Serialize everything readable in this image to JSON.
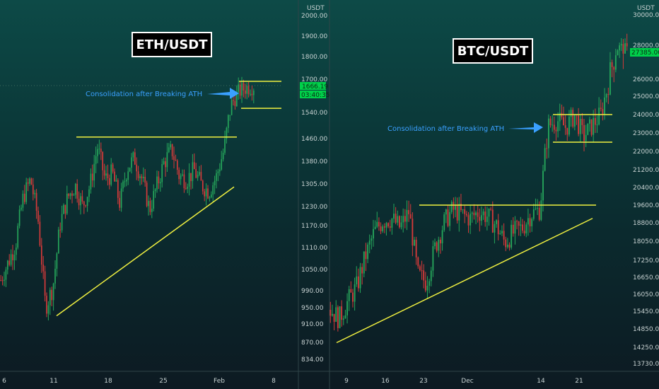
{
  "charts": [
    {
      "title": "ETH/USDT",
      "currency": "USDT",
      "y_ticks": [
        "2000.00",
        "1900.00",
        "1800.00",
        "1700.00",
        "1540.00",
        "1460.00",
        "1380.00",
        "1305.00",
        "1230.00",
        "1170.00",
        "1110.00",
        "1050.00",
        "990.00",
        "950.00",
        "910.00",
        "870.00",
        "834.00"
      ],
      "x_ticks": [
        "6",
        "11",
        "18",
        "25",
        "Feb",
        "8"
      ],
      "price_label": "1666.19",
      "timer_label": "03:40:35",
      "annotation": "Consolidation after Breaking ATH"
    },
    {
      "title": "BTC/USDT",
      "currency": "USDT",
      "y_ticks": [
        "30000.00",
        "28000.00",
        "27000.00",
        "26000.00",
        "25000.00",
        "24000.00",
        "23000.00",
        "22000.00",
        "21200.00",
        "20400.00",
        "19600.00",
        "18800.00",
        "18050.00",
        "17250.00",
        "16650.00",
        "16050.00",
        "15450.00",
        "14850.00",
        "14250.00",
        "13730.00"
      ],
      "x_ticks": [
        "9",
        "16",
        "23",
        "Dec",
        "14",
        "21"
      ],
      "price_label": "27385.00",
      "annotation": "Consolidation after Breaking ATH"
    }
  ],
  "colors": {
    "up": "#26a65b",
    "down": "#d63a3a",
    "trend": "#f0f040",
    "price_bg": "#00d04a",
    "annotation": "#3aa0ff"
  },
  "chart_data": [
    {
      "type": "candlestick",
      "title": "ETH/USDT",
      "ylabel": "USDT",
      "x": [
        "6",
        "11",
        "18",
        "25",
        "Feb",
        "8"
      ],
      "y_ticks": [
        2000,
        1900,
        1800,
        1700,
        1540,
        1460,
        1380,
        1305,
        1230,
        1170,
        1110,
        1050,
        990,
        950,
        910,
        870,
        834
      ],
      "close_path": [
        1020,
        1070,
        1120,
        1260,
        1320,
        1190,
        950,
        1000,
        1180,
        1260,
        1300,
        1230,
        1300,
        1430,
        1320,
        1340,
        1240,
        1360,
        1390,
        1320,
        1220,
        1300,
        1380,
        1420,
        1330,
        1320,
        1350,
        1300,
        1280,
        1330,
        1420,
        1580,
        1640,
        1660,
        1666
      ],
      "levels": [
        {
          "name": "resistance",
          "value": 1465
        },
        {
          "name": "range_high",
          "value": 1690
        },
        {
          "name": "range_low",
          "value": 1560
        }
      ],
      "trendline": [
        {
          "x": "11",
          "y": 930
        },
        {
          "x": "Feb",
          "y": 1295
        }
      ],
      "last_price": 1666.19
    },
    {
      "type": "candlestick",
      "title": "BTC/USDT",
      "ylabel": "USDT",
      "x": [
        "9",
        "16",
        "23",
        "Dec",
        "14",
        "21"
      ],
      "y_ticks": [
        30000,
        28000,
        27000,
        26000,
        25000,
        24000,
        23000,
        22000,
        21200,
        20400,
        19600,
        18800,
        18050,
        17250,
        16650,
        16050,
        15450,
        14850,
        14250,
        13730
      ],
      "close_path": [
        15500,
        15200,
        15800,
        16300,
        17400,
        18400,
        18900,
        19000,
        18600,
        19300,
        16700,
        16500,
        17800,
        18800,
        19400,
        19200,
        19000,
        19300,
        19100,
        18700,
        18000,
        18400,
        18600,
        19200,
        19400,
        23400,
        23700,
        23300,
        24000,
        22800,
        23400,
        24000,
        26000,
        27800,
        27385
      ],
      "levels": [
        {
          "name": "resistance",
          "value": 19600
        },
        {
          "name": "range_high",
          "value": 24000
        },
        {
          "name": "range_low",
          "value": 22500
        }
      ],
      "trendline": [
        {
          "x": "9",
          "y": 14400
        },
        {
          "x": "21",
          "y": 19000
        }
      ],
      "last_price": 27385
    }
  ]
}
